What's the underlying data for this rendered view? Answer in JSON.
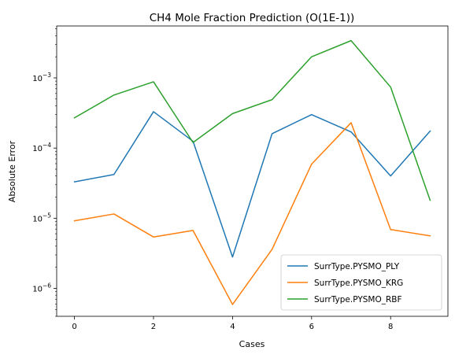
{
  "chart_data": {
    "type": "line",
    "title": "CH4 Mole Fraction Prediction (O(1E-1))",
    "xlabel": "Cases",
    "ylabel": "Absolute Error",
    "yscale": "log",
    "xlim": [
      -0.45,
      9.45
    ],
    "ylim": [
      4e-07,
      0.0055
    ],
    "x": [
      0,
      1,
      2,
      3,
      4,
      5,
      6,
      7,
      8,
      9
    ],
    "xticks": [
      0,
      2,
      4,
      6,
      8
    ],
    "yticks": [
      {
        "value": 1e-06,
        "mantissa": "10",
        "exp": "−6"
      },
      {
        "value": 1e-05,
        "mantissa": "10",
        "exp": "−5"
      },
      {
        "value": 0.0001,
        "mantissa": "10",
        "exp": "−4"
      },
      {
        "value": 0.001,
        "mantissa": "10",
        "exp": "−3"
      }
    ],
    "grid": false,
    "legend_position": "bottom-right",
    "series": [
      {
        "name": "SurrType.PYSMO_PLY",
        "color": "#1f77b4",
        "values": [
          3.3e-05,
          4.2e-05,
          0.00033,
          0.000125,
          2.8e-06,
          0.00016,
          0.0003,
          0.00017,
          4e-05,
          0.000175
        ]
      },
      {
        "name": "SurrType.PYSMO_KRG",
        "color": "#ff7f0e",
        "values": [
          9.2e-06,
          1.15e-05,
          5.4e-06,
          6.7e-06,
          5.9e-07,
          3.6e-06,
          5.9e-05,
          0.00023,
          6.9e-06,
          5.6e-06
        ]
      },
      {
        "name": "SurrType.PYSMO_RBF",
        "color": "#2ca02c",
        "values": [
          0.00027,
          0.00057,
          0.00088,
          0.00012,
          0.00031,
          0.00049,
          0.002,
          0.0034,
          0.00074,
          1.8e-05
        ]
      }
    ]
  }
}
